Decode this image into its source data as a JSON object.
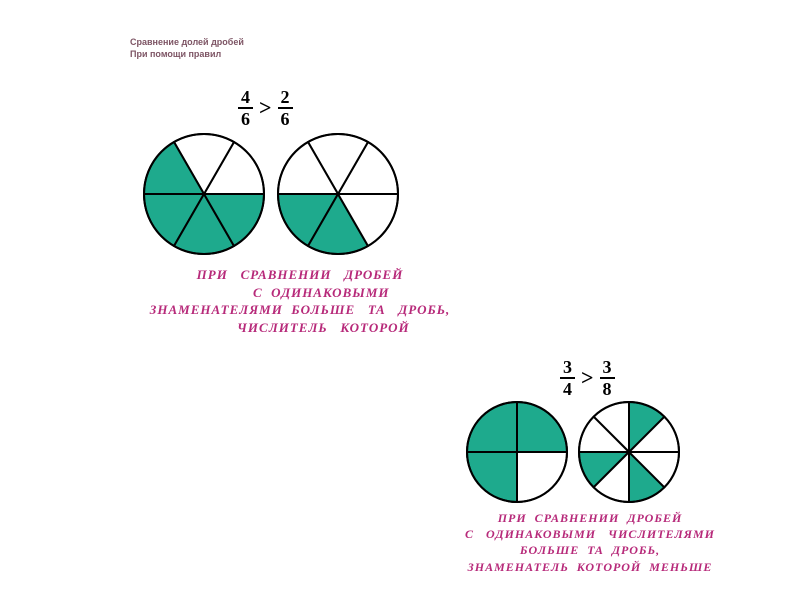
{
  "header": {
    "line1": "Сравнение долей дробей",
    "line2": "При помощи правил"
  },
  "group1": {
    "fraction_a": {
      "num": "4",
      "den": "6"
    },
    "operator": ">",
    "fraction_b": {
      "num": "2",
      "den": "6"
    },
    "pie_a": {
      "radius": 60,
      "slices": 6,
      "filled": [
        2,
        3,
        4,
        5
      ],
      "fill_color": "#1eaa8d",
      "stroke": "#000000",
      "stroke_width": 2
    },
    "pie_b": {
      "radius": 60,
      "slices": 6,
      "filled": [
        3,
        4
      ],
      "fill_color": "#1eaa8d",
      "stroke": "#000000",
      "stroke_width": 2
    },
    "rule": "ПРИ   СРАВНЕНИИ   ДРОБЕЙ\n          С  ОДИНАКОВЫМИ\nЗНАМЕНАТЕЛЯМИ  БОЛЬШЕ   ТА   ДРОБЬ,\n           ЧИСЛИТЕЛЬ   КОТОРОЙ"
  },
  "group2": {
    "fraction_a": {
      "num": "3",
      "den": "4"
    },
    "operator": ">",
    "fraction_b": {
      "num": "3",
      "den": "8"
    },
    "pie_a": {
      "radius": 50,
      "slices": 4,
      "filled": [
        0,
        1,
        2
      ],
      "fill_color": "#1eaa8d",
      "stroke": "#000000",
      "stroke_width": 2
    },
    "pie_b": {
      "radius": 50,
      "slices": 8,
      "filled": [
        1,
        4,
        6
      ],
      "fill_color": "#1eaa8d",
      "stroke": "#000000",
      "stroke_width": 2
    },
    "rule": "ПРИ  СРАВНЕНИИ  ДРОБЕЙ\nС   ОДИНАКОВЫМИ   ЧИСЛИТЕЛЯМИ\nБОЛЬШЕ  ТА  ДРОБЬ,\nЗНАМЕНАТЕЛЬ  КОТОРОЙ  МЕНЬШЕ"
  },
  "colors": {
    "text_header": "#7d5464",
    "text_rule": "#b72a7a",
    "pie_fill": "#1eaa8d",
    "pie_stroke": "#000000",
    "background": "#ffffff"
  },
  "fonts": {
    "header_size_pt": 7,
    "rule_size_pt": 10,
    "fraction_size_pt": 14
  }
}
